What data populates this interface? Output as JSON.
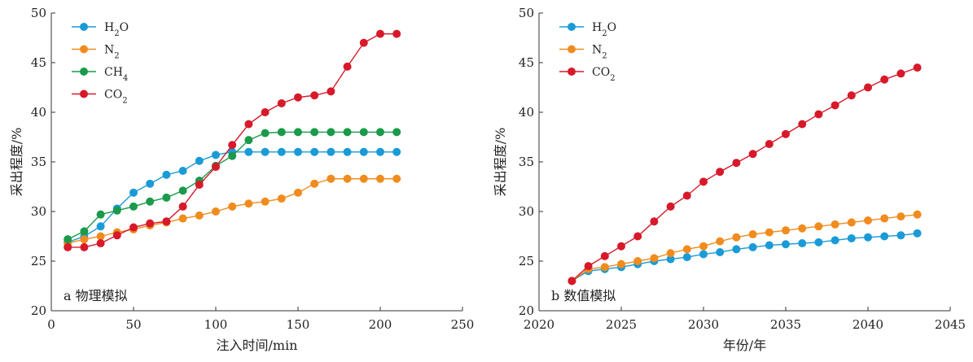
{
  "chart_data": [
    {
      "type": "line",
      "panel_label": "a 物理模拟",
      "xlabel": "注入时间/min",
      "ylabel": "采出程度/%",
      "xlim": [
        0,
        250
      ],
      "ylim": [
        20,
        50
      ],
      "xticks": [
        0,
        50,
        100,
        150,
        200,
        250
      ],
      "yticks": [
        20,
        25,
        30,
        35,
        40,
        45,
        50
      ],
      "grid": false,
      "legend_position": "top-left",
      "x": [
        10,
        20,
        30,
        40,
        50,
        60,
        70,
        80,
        90,
        100,
        110,
        120,
        130,
        140,
        150,
        160,
        170,
        180,
        190,
        200,
        210
      ],
      "series": [
        {
          "name": "H2O",
          "legend_main": "H",
          "legend_sub": "2",
          "legend_tail": "O",
          "color": "#1a9bd7",
          "values": [
            26.9,
            27.5,
            28.5,
            30.3,
            31.9,
            32.8,
            33.7,
            34.1,
            35.1,
            35.7,
            36.0,
            36.0,
            36.0,
            36.0,
            36.0,
            36.0,
            36.0,
            36.0,
            36.0,
            36.0,
            36.0
          ]
        },
        {
          "name": "N2",
          "legend_main": "N",
          "legend_sub": "2",
          "legend_tail": "",
          "color": "#f08c1e",
          "values": [
            26.8,
            27.2,
            27.5,
            27.9,
            28.2,
            28.6,
            28.9,
            29.3,
            29.6,
            30.0,
            30.5,
            30.8,
            31.0,
            31.3,
            31.9,
            32.8,
            33.3,
            33.3,
            33.3,
            33.3,
            33.3
          ]
        },
        {
          "name": "CH4",
          "legend_main": "CH",
          "legend_sub": "4",
          "legend_tail": "",
          "color": "#1a9a4a",
          "values": [
            27.2,
            28.0,
            29.7,
            30.1,
            30.5,
            31.0,
            31.4,
            32.1,
            33.1,
            34.6,
            35.6,
            37.2,
            37.9,
            38.0,
            38.0,
            38.0,
            38.0,
            38.0,
            38.0,
            38.0,
            38.0
          ]
        },
        {
          "name": "CO2",
          "legend_main": "CO",
          "legend_sub": "2",
          "legend_tail": "",
          "color": "#d7192a",
          "values": [
            26.4,
            26.4,
            26.8,
            27.6,
            28.4,
            28.8,
            29.0,
            30.5,
            32.7,
            34.5,
            36.7,
            38.8,
            40.0,
            40.9,
            41.5,
            41.7,
            42.1,
            44.6,
            47.0,
            47.9,
            47.9
          ]
        }
      ]
    },
    {
      "type": "line",
      "panel_label": "b 数值模拟",
      "xlabel": "年份/年",
      "ylabel": "采出程度/%",
      "xlim": [
        2020,
        2045
      ],
      "ylim": [
        20,
        50
      ],
      "xticks": [
        2020,
        2025,
        2030,
        2035,
        2040,
        2045
      ],
      "yticks": [
        20,
        25,
        30,
        35,
        40,
        45,
        50
      ],
      "grid": false,
      "legend_position": "top-left",
      "x": [
        2022,
        2023,
        2024,
        2025,
        2026,
        2027,
        2028,
        2029,
        2030,
        2031,
        2032,
        2033,
        2034,
        2035,
        2036,
        2037,
        2038,
        2039,
        2040,
        2041,
        2042,
        2043
      ],
      "series": [
        {
          "name": "H2O",
          "legend_main": "H",
          "legend_sub": "2",
          "legend_tail": "O",
          "color": "#1a9bd7",
          "values": [
            23.0,
            24.0,
            24.2,
            24.4,
            24.7,
            25.0,
            25.2,
            25.4,
            25.7,
            25.9,
            26.2,
            26.4,
            26.6,
            26.7,
            26.8,
            26.9,
            27.1,
            27.3,
            27.4,
            27.5,
            27.6,
            27.8
          ]
        },
        {
          "name": "N2",
          "legend_main": "N",
          "legend_sub": "2",
          "legend_tail": "",
          "color": "#f08c1e",
          "values": [
            23.0,
            24.2,
            24.4,
            24.7,
            25.0,
            25.3,
            25.8,
            26.2,
            26.5,
            27.0,
            27.4,
            27.7,
            27.9,
            28.1,
            28.3,
            28.5,
            28.7,
            28.9,
            29.1,
            29.3,
            29.5,
            29.7
          ]
        },
        {
          "name": "CO2",
          "legend_main": "CO",
          "legend_sub": "2",
          "legend_tail": "",
          "color": "#d7192a",
          "values": [
            23.0,
            24.5,
            25.5,
            26.5,
            27.5,
            29.0,
            30.5,
            31.6,
            33.0,
            34.0,
            34.9,
            35.8,
            36.8,
            37.8,
            38.8,
            39.8,
            40.7,
            41.7,
            42.5,
            43.3,
            43.9,
            44.5
          ]
        }
      ]
    }
  ]
}
